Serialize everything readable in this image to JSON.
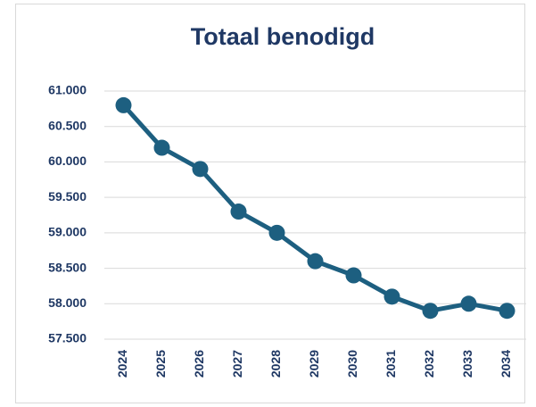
{
  "chart_data": {
    "type": "line",
    "title": "Totaal benodigd",
    "categories": [
      "2024",
      "2025",
      "2026",
      "2027",
      "2028",
      "2029",
      "2030",
      "2031",
      "2032",
      "2033",
      "2034"
    ],
    "series": [
      {
        "name": "Totaal benodigd",
        "color": "#1d5f80",
        "values": [
          60800,
          60200,
          59900,
          59300,
          59000,
          58600,
          58400,
          58100,
          57900,
          58000,
          57900
        ]
      }
    ],
    "ylim": [
      57500,
      61000
    ],
    "yticks": [
      {
        "value": 57500,
        "label": "57.500"
      },
      {
        "value": 58000,
        "label": "58.000"
      },
      {
        "value": 58500,
        "label": "58.500"
      },
      {
        "value": 59000,
        "label": "59.000"
      },
      {
        "value": 59500,
        "label": "59.500"
      },
      {
        "value": 60000,
        "label": "60.000"
      },
      {
        "value": 60500,
        "label": "60.500"
      },
      {
        "value": 61000,
        "label": "61.000"
      }
    ],
    "grid": true
  }
}
